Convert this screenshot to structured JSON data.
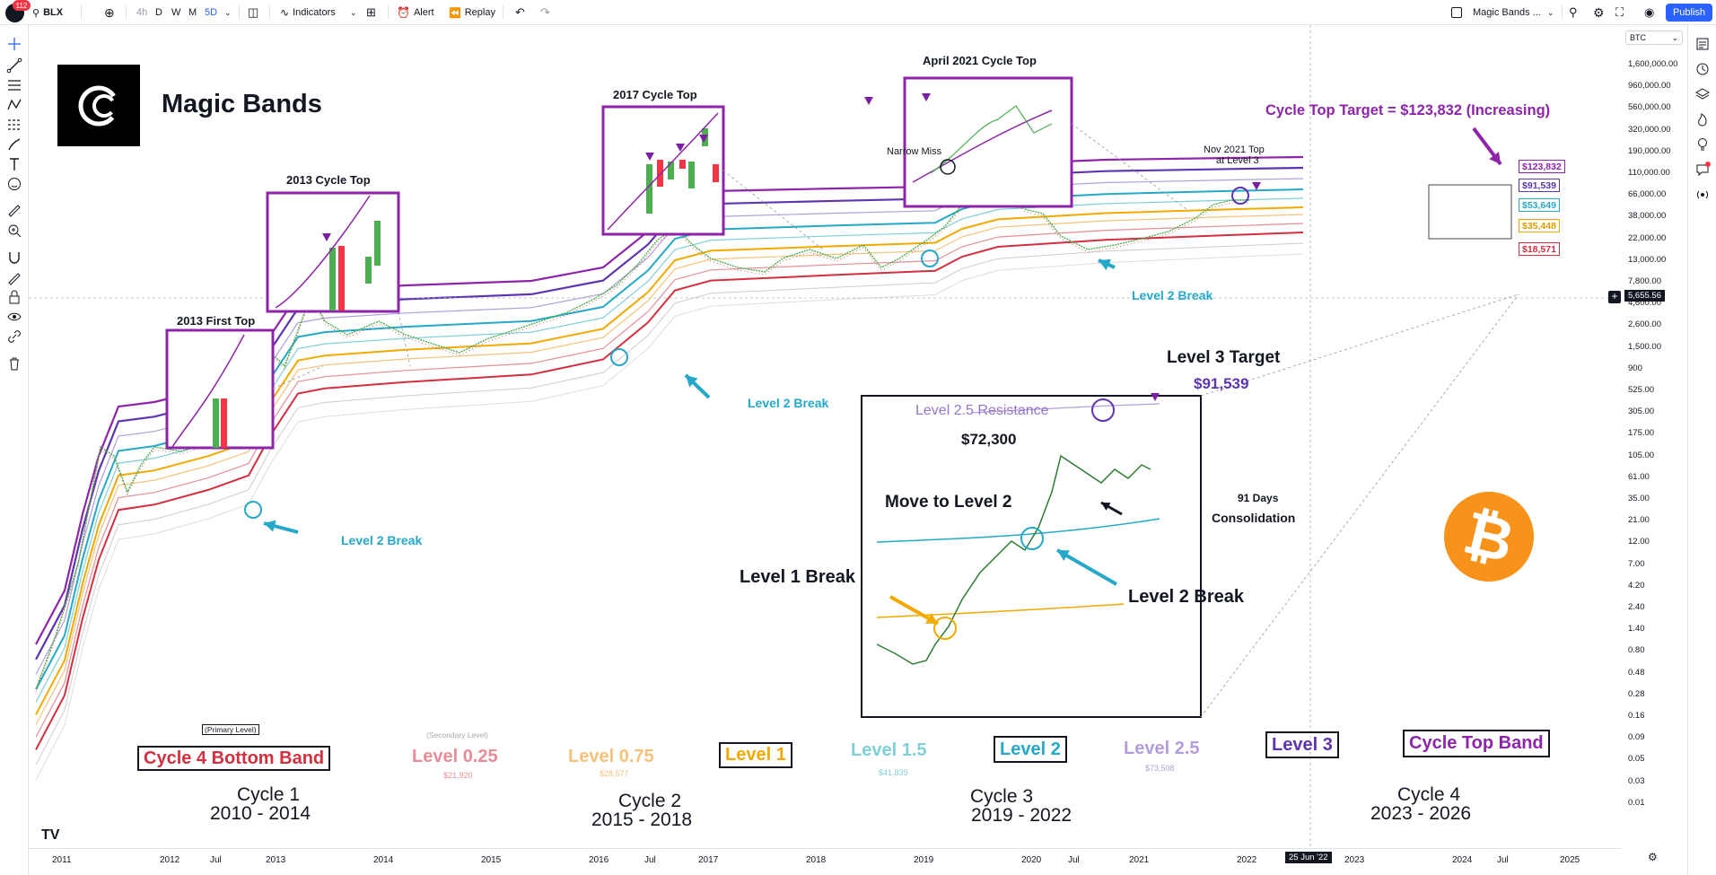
{
  "toolbar": {
    "badge_count": "112",
    "symbol": "BLX",
    "timeframes": [
      "4h",
      "D",
      "W",
      "M",
      "5D"
    ],
    "indicators_label": "Indicators",
    "alert_label": "Alert",
    "replay_label": "Replay",
    "layout_name": "Magic Bands ...",
    "publish_label": "Publish"
  },
  "chart": {
    "currency_select": "BTC",
    "brand_name": "Magic Bands",
    "current_price": "5,655.56",
    "crosshair_date": "25 Jun '22",
    "price_scale": [
      "1,600,000.00",
      "960,000.00",
      "560,000.00",
      "320,000.00",
      "190,000.00",
      "110,000.00",
      "66,000.00",
      "38,000.00",
      "22,000.00",
      "13,000.00",
      "7,800.00",
      "4,600.00",
      "2,600.00",
      "1,500.00",
      "900",
      "525.00",
      "305.00",
      "175.00",
      "105.00",
      "61.00",
      "35.00",
      "21.00",
      "12.00",
      "7.00",
      "4.20",
      "2.40",
      "1.40",
      "0.80",
      "0.48",
      "0.28",
      "0.16",
      "0.09",
      "0.05",
      "0.03",
      "0.01"
    ],
    "time_scale": [
      "2011",
      "2012",
      "Jul",
      "2013",
      "2014",
      "2015",
      "2016",
      "Jul",
      "2017",
      "2018",
      "2019",
      "2020",
      "Jul",
      "2021",
      "2022",
      "2023",
      "2024",
      "Jul",
      "2025"
    ],
    "band_price_tags": [
      {
        "label": "$123,832",
        "color": "#8e24aa"
      },
      {
        "label": "$91,539",
        "color": "#5e35b1"
      },
      {
        "label": "$53,649",
        "color": "#26a8c9"
      },
      {
        "label": "$35,448",
        "color": "#f2a900"
      },
      {
        "label": "$18,571",
        "color": "#d32f3f"
      }
    ]
  },
  "annotations": {
    "cycle_top_target": "Cycle Top Target = $123,832 (Increasing)",
    "box_2013_first_top": "2013 First Top",
    "box_2013_cycle_top": "2013 Cycle Top",
    "box_2017_cycle_top": "2017 Cycle Top",
    "box_april_2021": "April 2021 Cycle Top",
    "narrow_miss": "Narrow Miss",
    "nov_2021_top": "Nov 2021 Top",
    "nov_2021_top_sub": "at Level 3",
    "level2_break": "Level 2 Break",
    "level3_target": "Level 3 Target",
    "level3_target_value": "$91,539",
    "level25_resistance": "Level 2.5 Resistance",
    "price_72300": "$72,300",
    "move_to_level2": "Move to  Level 2",
    "days_91": "91 Days",
    "consolidation": "Consolidation",
    "level1_break": "Level 1 Break",
    "level2_break_inset": "Level 2 Break"
  },
  "legend": {
    "primary_level": "(Primary Level)",
    "secondary_level": "(Secondary Level)",
    "items": [
      {
        "label": "Cycle 4 Bottom Band",
        "color": "#d32f3f",
        "boxed": true
      },
      {
        "label": "Level 0.25",
        "color": "#e88d97",
        "boxed": false,
        "value": "$21,920"
      },
      {
        "label": "Level 0.75",
        "color": "#f6c27a",
        "boxed": false,
        "value": "$28,577"
      },
      {
        "label": "Level 1",
        "color": "#f2a900",
        "boxed": true
      },
      {
        "label": "Level 1.5",
        "color": "#7fcfd9",
        "boxed": false,
        "value": "$41,839"
      },
      {
        "label": "Level 2",
        "color": "#26a8c9",
        "boxed": true
      },
      {
        "label": "Level 2.5",
        "color": "#b39ddb",
        "boxed": false,
        "value": "$73,508"
      },
      {
        "label": "Level 3",
        "color": "#5e35b1",
        "boxed": true
      },
      {
        "label": "Cycle Top Band",
        "color": "#8e24aa",
        "boxed": true
      }
    ]
  },
  "cycles": [
    {
      "name": "Cycle 1",
      "years": "2010 - 2014"
    },
    {
      "name": "Cycle 2",
      "years": "2015 - 2018"
    },
    {
      "name": "Cycle 3",
      "years": "2019 - 2022"
    },
    {
      "name": "Cycle 4",
      "years": "2023 - 2026"
    }
  ]
}
